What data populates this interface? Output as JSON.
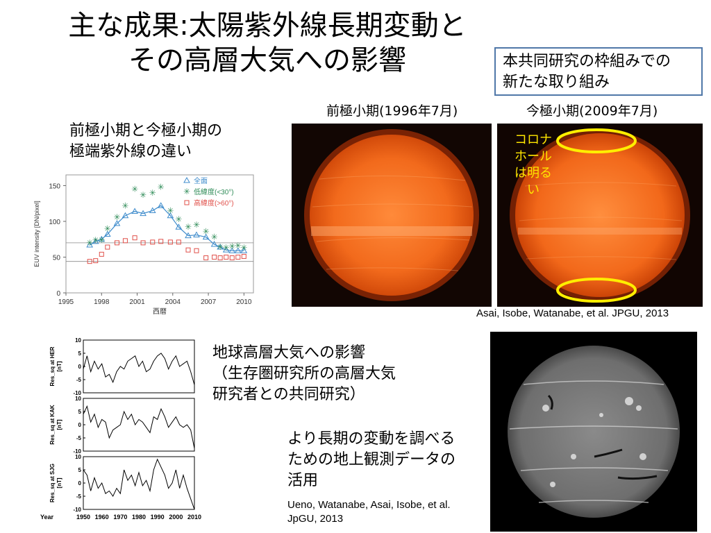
{
  "slide": {
    "title_line1": "主な成果:太陽紫外線長期変動と",
    "title_line2": "その高層大気への影響",
    "note_line1": "本共同研究の枠組みでの",
    "note_line2": "新たな取り組み"
  },
  "euv_section": {
    "heading_line1": "前極小期と今極小期の",
    "heading_line2": "極端紫外線の違い",
    "label_prev_min": "前極小期(1996年7月)",
    "label_curr_min": "今極小期(2009年7月)",
    "coronal_hole_note": [
      "コロナ",
      "ホール",
      "は明る",
      "い"
    ],
    "citation": "Asai, Isobe, Watanabe, et al. JPGU, 2013",
    "sun_images": [
      "solar-euv-disk-1996",
      "solar-euv-disk-2009"
    ]
  },
  "upper_atmo_section": {
    "heading_line1": "地球高層大気への影響",
    "heading_line2": "（生存圏研究所の高層大気",
    "heading_line3": "研究者との共同研究）",
    "ground_obs_line1": "より長期の変動を調べる",
    "ground_obs_line2": "ための地上観測データの",
    "ground_obs_line3": "活用",
    "citation_line1": "Ueno, Watanabe, Asai, Isobe, et al.",
    "citation_line2": "JpGU, 2013",
    "sun_image": "solar-halpha-disk-grayscale"
  },
  "chart_data": [
    {
      "type": "scatter",
      "ylabel": "EUV intensity [DN/pixel]",
      "xlabel": "西暦",
      "xlim": [
        1995,
        2010.8
      ],
      "ylim": [
        0,
        165
      ],
      "xticks": [
        1995,
        1998,
        2001,
        2004,
        2007,
        2010
      ],
      "yticks": [
        0,
        50,
        100,
        150
      ],
      "legend_position": "top-right",
      "hlines": [
        70,
        44
      ],
      "series": [
        {
          "name": "全面",
          "marker": "triangle",
          "line": true,
          "color": "#3f8ccc",
          "x": [
            1997.0,
            1997.5,
            1998.0,
            1998.5,
            1999.3,
            2000.0,
            2000.8,
            2001.5,
            2002.3,
            2003.0,
            2003.8,
            2004.5,
            2005.3,
            2006.0,
            2006.8,
            2007.5,
            2008.0,
            2008.5,
            2009.0,
            2009.5,
            2010.0
          ],
          "y": [
            67,
            72,
            75,
            82,
            97,
            108,
            114,
            111,
            115,
            122,
            108,
            92,
            80,
            81,
            78,
            68,
            64,
            60,
            59,
            59,
            59
          ]
        },
        {
          "name": "低緯度(<30°)",
          "marker": "star",
          "line": false,
          "color": "#2e8b57",
          "x": [
            1997.0,
            1997.5,
            1998.0,
            1998.5,
            1999.3,
            2000.0,
            2000.8,
            2001.5,
            2002.3,
            2003.0,
            2003.8,
            2004.5,
            2005.3,
            2006.0,
            2006.8,
            2007.5,
            2008.0,
            2008.5,
            2009.0,
            2009.5,
            2010.0
          ],
          "y": [
            70,
            74,
            74,
            90,
            106,
            122,
            145,
            137,
            140,
            148,
            115,
            103,
            92,
            95,
            86,
            78,
            64,
            63,
            65,
            66,
            63
          ]
        },
        {
          "name": "高緯度(>60°)",
          "marker": "square",
          "line": false,
          "color": "#e0504a",
          "x": [
            1997.0,
            1997.5,
            1998.0,
            1998.5,
            1999.3,
            2000.0,
            2000.8,
            2001.5,
            2002.3,
            2003.0,
            2003.8,
            2004.5,
            2005.3,
            2006.0,
            2006.8,
            2007.5,
            2008.0,
            2008.5,
            2009.0,
            2009.5,
            2010.0
          ],
          "y": [
            44,
            45,
            54,
            64,
            70,
            73,
            77,
            70,
            71,
            72,
            71,
            71,
            60,
            59,
            49,
            50,
            49,
            50,
            49,
            50,
            51
          ]
        }
      ]
    },
    {
      "type": "line",
      "xlabel_prefix": "Year",
      "xticks": [
        1950,
        1960,
        1970,
        1980,
        1990,
        2000,
        2010
      ],
      "xlim": [
        1950,
        2010
      ],
      "ylim": [
        -10,
        10
      ],
      "yticks": [
        10,
        5,
        0,
        -5,
        -10
      ],
      "panels": [
        {
          "ylabel": "Res_sq at HER\n[nT]",
          "x": [
            1950,
            1952,
            1954,
            1956,
            1958,
            1960,
            1962,
            1964,
            1966,
            1968,
            1970,
            1972,
            1974,
            1976,
            1978,
            1980,
            1982,
            1984,
            1986,
            1988,
            1990,
            1992,
            1994,
            1996,
            1998,
            2000,
            2002,
            2004,
            2006,
            2008,
            2010
          ],
          "values": [
            -1,
            4,
            -2,
            2,
            -1,
            1,
            -4,
            -3,
            -6,
            -2,
            0,
            -1,
            2,
            3,
            4,
            0,
            2,
            -2,
            -1,
            2,
            4,
            5,
            3,
            -1,
            2,
            4,
            0,
            1,
            2,
            -2,
            -7
          ]
        },
        {
          "ylabel": "Res_sq at KAK\n[nT]",
          "x": [
            1950,
            1952,
            1954,
            1956,
            1958,
            1960,
            1962,
            1964,
            1966,
            1968,
            1970,
            1972,
            1974,
            1976,
            1978,
            1980,
            1982,
            1984,
            1986,
            1988,
            1990,
            1992,
            1994,
            1996,
            1998,
            2000,
            2002,
            2004,
            2006,
            2008,
            2010
          ],
          "values": [
            4,
            7,
            1,
            4,
            -1,
            2,
            1,
            -5,
            -2,
            -1,
            0,
            5,
            2,
            4,
            0,
            2,
            1,
            -1,
            -3,
            3,
            2,
            6,
            3,
            -1,
            1,
            3,
            0,
            -1,
            0,
            -2,
            -9
          ]
        },
        {
          "ylabel": "Res_sq at SJG\n[nT]",
          "x": [
            1950,
            1952,
            1954,
            1956,
            1958,
            1960,
            1962,
            1964,
            1966,
            1968,
            1970,
            1972,
            1974,
            1976,
            1978,
            1980,
            1982,
            1984,
            1986,
            1988,
            1990,
            1992,
            1994,
            1996,
            1998,
            2000,
            2002,
            2004,
            2006,
            2008,
            2010
          ],
          "values": [
            5,
            3,
            -3,
            2,
            -2,
            0,
            -4,
            -3,
            -5,
            -2,
            -4,
            5,
            1,
            3,
            -1,
            4,
            -1,
            1,
            -3,
            5,
            9,
            6,
            3,
            -2,
            0,
            5,
            -2,
            3,
            -2,
            -6,
            -10
          ]
        }
      ]
    }
  ]
}
